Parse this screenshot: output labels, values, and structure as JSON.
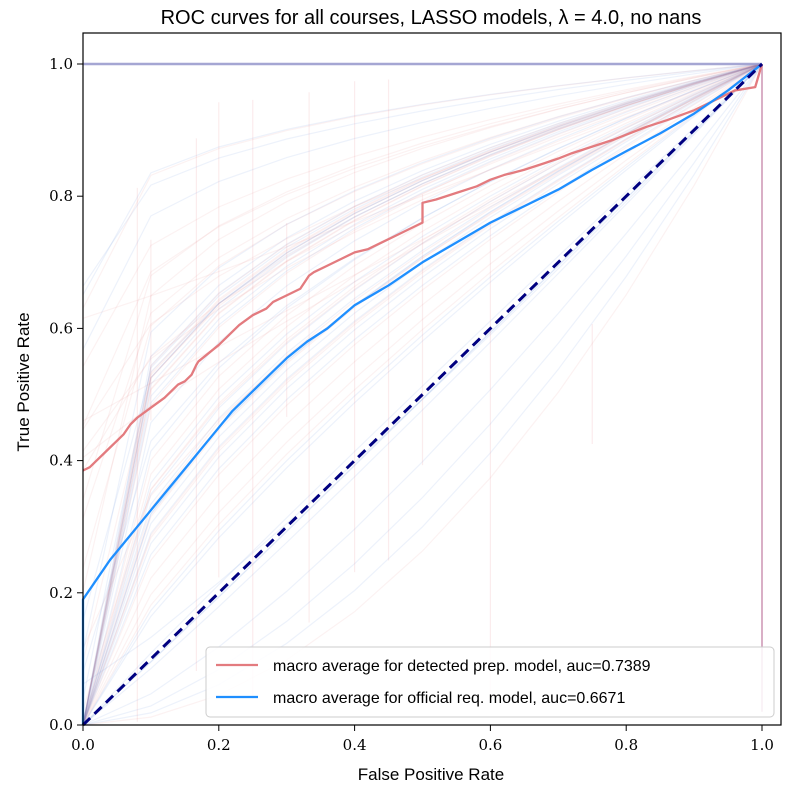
{
  "chart_data": {
    "type": "line",
    "title": "ROC curves for all courses, LASSO models, λ = 4.0, no nans",
    "xlabel": "False Positive Rate",
    "ylabel": "True Positive Rate",
    "xlim": [
      0.0,
      1.0
    ],
    "ylim": [
      0.0,
      1.0
    ],
    "x_ticks": [
      0.0,
      0.2,
      0.4,
      0.6,
      0.8,
      1.0
    ],
    "y_ticks": [
      0.0,
      0.2,
      0.4,
      0.6,
      0.8,
      1.0
    ],
    "x_tick_labels": [
      "0.0",
      "0.2",
      "0.4",
      "0.6",
      "0.8",
      "1.0"
    ],
    "y_tick_labels": [
      "0.0",
      "0.2",
      "0.4",
      "0.6",
      "0.8",
      "1.0"
    ],
    "grid": false,
    "legend_position": "lower-right",
    "series": [
      {
        "name": "macro average for detected prep. model, auc=0.7389",
        "color": "#e37b7f",
        "x": [
          0.0,
          0.01,
          0.02,
          0.03,
          0.04,
          0.05,
          0.06,
          0.07,
          0.08,
          0.1,
          0.12,
          0.13,
          0.14,
          0.15,
          0.16,
          0.167,
          0.17,
          0.2,
          0.21,
          0.23,
          0.25,
          0.27,
          0.28,
          0.3,
          0.32,
          0.333,
          0.34,
          0.36,
          0.38,
          0.4,
          0.42,
          0.44,
          0.46,
          0.48,
          0.5,
          0.5,
          0.52,
          0.55,
          0.58,
          0.6,
          0.62,
          0.65,
          0.68,
          0.7,
          0.72,
          0.75,
          0.78,
          0.8,
          0.83,
          0.86,
          0.9,
          0.93,
          0.96,
          0.99,
          1.0
        ],
        "y": [
          0.385,
          0.39,
          0.4,
          0.41,
          0.42,
          0.43,
          0.44,
          0.455,
          0.465,
          0.48,
          0.495,
          0.505,
          0.515,
          0.52,
          0.53,
          0.545,
          0.55,
          0.575,
          0.585,
          0.605,
          0.62,
          0.63,
          0.64,
          0.65,
          0.66,
          0.68,
          0.685,
          0.695,
          0.705,
          0.715,
          0.72,
          0.73,
          0.74,
          0.75,
          0.76,
          0.79,
          0.795,
          0.805,
          0.815,
          0.825,
          0.832,
          0.84,
          0.85,
          0.857,
          0.865,
          0.875,
          0.885,
          0.893,
          0.905,
          0.915,
          0.93,
          0.945,
          0.96,
          0.965,
          1.0
        ]
      },
      {
        "name": "macro average for official req. model, auc=0.6671",
        "color": "#1f8fff",
        "x": [
          0.0,
          0.0,
          0.02,
          0.04,
          0.06,
          0.08,
          0.1,
          0.12,
          0.14,
          0.16,
          0.18,
          0.2,
          0.22,
          0.25,
          0.28,
          0.3,
          0.33,
          0.36,
          0.4,
          0.45,
          0.5,
          0.55,
          0.6,
          0.65,
          0.7,
          0.75,
          0.8,
          0.85,
          0.9,
          0.95,
          1.0
        ],
        "y": [
          0.0,
          0.19,
          0.22,
          0.25,
          0.275,
          0.3,
          0.325,
          0.35,
          0.375,
          0.4,
          0.425,
          0.45,
          0.475,
          0.505,
          0.535,
          0.555,
          0.58,
          0.6,
          0.635,
          0.665,
          0.7,
          0.73,
          0.76,
          0.785,
          0.81,
          0.84,
          0.868,
          0.895,
          0.925,
          0.96,
          1.0
        ]
      }
    ],
    "reference_line": {
      "color": "#000080",
      "x": [
        0.0,
        1.0
      ],
      "y": [
        0.0,
        1.0
      ],
      "style": "dashed"
    }
  }
}
